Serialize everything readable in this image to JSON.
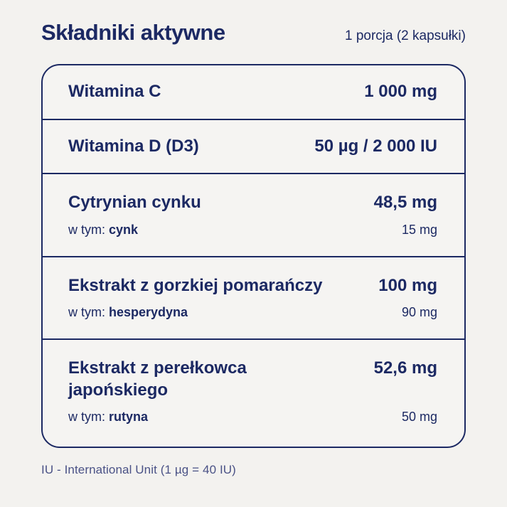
{
  "header": {
    "title": "Składniki aktywne",
    "serving": "1 porcja (2 kapsułki)"
  },
  "table": {
    "rows": [
      {
        "name": "Witamina C",
        "amount": "1 000 mg"
      },
      {
        "name": "Witamina D (D3)",
        "amount": "50 µg / 2 000 IU"
      },
      {
        "name": "Cytrynian cynku",
        "amount": "48,5 mg",
        "sub_prefix": "w tym: ",
        "sub_name": "cynk",
        "sub_amount": "15 mg"
      },
      {
        "name": "Ekstrakt z gorzkiej pomarańczy",
        "amount": "100 mg",
        "sub_prefix": "w tym: ",
        "sub_name": "hesperydyna",
        "sub_amount": "90 mg"
      },
      {
        "name": "Ekstrakt z perełkowca japońskiego",
        "amount": "52,6 mg",
        "sub_prefix": "w tym: ",
        "sub_name": "rutyna",
        "sub_amount": "50 mg"
      }
    ]
  },
  "footer": {
    "note": "IU - International Unit (1 µg = 40 IU)"
  },
  "colors": {
    "background": "#f3f2ef",
    "text": "#1c2963",
    "border": "#1c2963",
    "footer_text": "#4a5286"
  }
}
